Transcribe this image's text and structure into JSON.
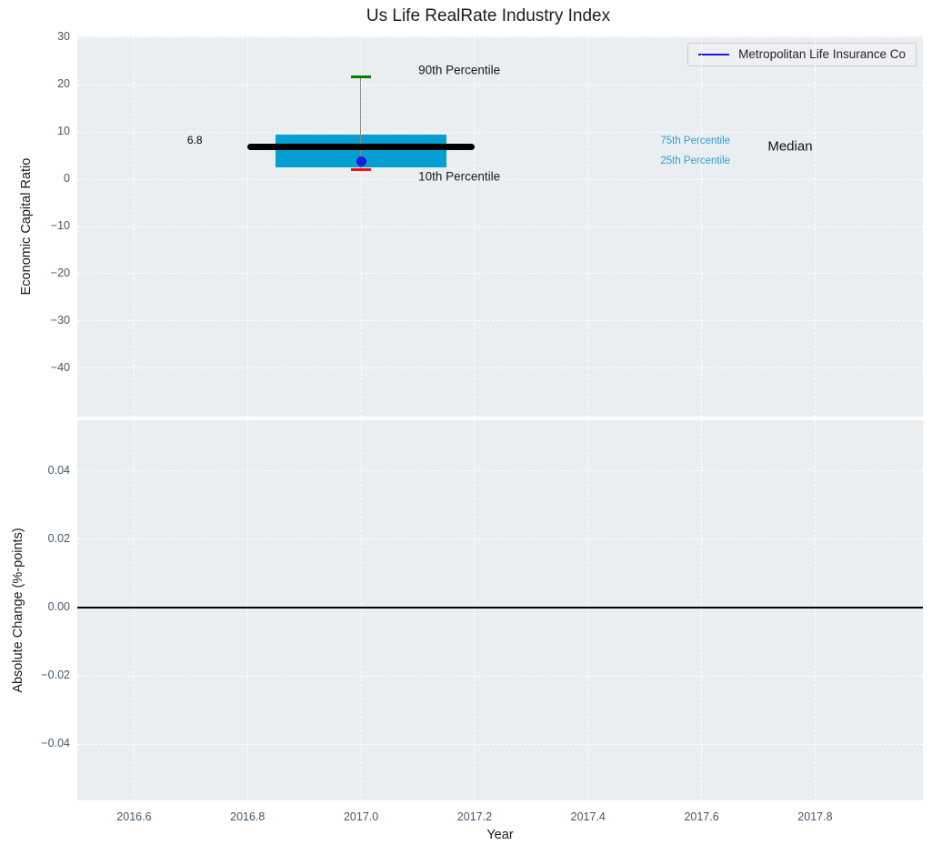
{
  "title": "Us Life RealRate Industry Index",
  "legend": {
    "label": "Metropolitan Life Insurance Co"
  },
  "colors": {
    "plot_bg": "#eaeef0",
    "grid": "#ffffff",
    "box_fill": "#059fd2",
    "median_line": "#000000",
    "whisker_line": "#8a8a8a",
    "cap_90th": "#008000",
    "cap_10th": "#f01010",
    "company": "#1a1ae6",
    "tick_label": "#46566a",
    "cyan_text": "#2aa3d6",
    "zero_line": "#000000"
  },
  "chart_data": {
    "type": "boxplot",
    "title": "Us Life RealRate Industry Index",
    "x": {
      "label": "Year",
      "lim": [
        2016.5,
        2017.99
      ],
      "ticks": [
        2016.6,
        2016.8,
        2017.0,
        2017.2,
        2017.4,
        2017.6,
        2017.8
      ],
      "tick_labels": [
        "2016.6",
        "2016.8",
        "2017.0",
        "2017.2",
        "2017.4",
        "2017.6",
        "2017.8"
      ]
    },
    "top_panel": {
      "ylabel": "Economic Capital Ratio",
      "ylim": [
        -50.2,
        30.2
      ],
      "yticks": [
        30,
        20,
        10,
        0,
        -10,
        -20,
        -30,
        -40
      ],
      "ytick_labels": [
        "30",
        "20",
        "10",
        "0",
        "−10",
        "−20",
        "−30",
        "−40"
      ],
      "grid": true,
      "box": {
        "x_center": 2017.0,
        "p90": 21.7,
        "p75": 9.5,
        "median": 6.8,
        "p25": 2.5,
        "p10": 2.0,
        "box_x0": 2016.85,
        "box_x1": 2017.15,
        "median_x0": 2016.8,
        "median_x1": 2017.2,
        "cap_halfwidth": 0.017
      },
      "company_point": {
        "name": "Metropolitan Life Insurance Co",
        "x": 2017.0,
        "y": 3.8
      },
      "annotations": [
        {
          "text": "90th Percentile",
          "x": 2017.101,
          "y": 23.1,
          "color": "#1a1a1a",
          "size": 13.5,
          "align": "left"
        },
        {
          "text": "10th Percentile",
          "x": 2017.101,
          "y": 0.58,
          "color": "#1a1a1a",
          "size": 13.5,
          "align": "left"
        },
        {
          "text": "6.8",
          "x": 2016.707,
          "y": 8.3,
          "color": "#000000",
          "size": 12,
          "align": "center"
        },
        {
          "text": "75th Percentile",
          "x": 2017.589,
          "y": 8.1,
          "color": "#2aa3d6",
          "size": 11.5,
          "align": "center"
        },
        {
          "text": "25th Percentile",
          "x": 2017.589,
          "y": 3.85,
          "color": "#2aa3d6",
          "size": 11.5,
          "align": "center"
        },
        {
          "text": "Median",
          "x": 2017.756,
          "y": 6.9,
          "color": "#111111",
          "size": 15,
          "align": "center"
        }
      ]
    },
    "bottom_panel": {
      "ylabel": "Absolute Change (%-points)",
      "ylim": [
        -0.0565,
        0.0549
      ],
      "yticks": [
        0.04,
        0.02,
        0.0,
        -0.02,
        -0.04
      ],
      "ytick_labels": [
        "0.04",
        "0.02",
        "0.00",
        "−0.02",
        "−0.04"
      ],
      "grid": true,
      "zero_line": 0.0
    },
    "legend": {
      "position": "upper right",
      "entries": [
        "Metropolitan Life Insurance Co"
      ]
    }
  }
}
